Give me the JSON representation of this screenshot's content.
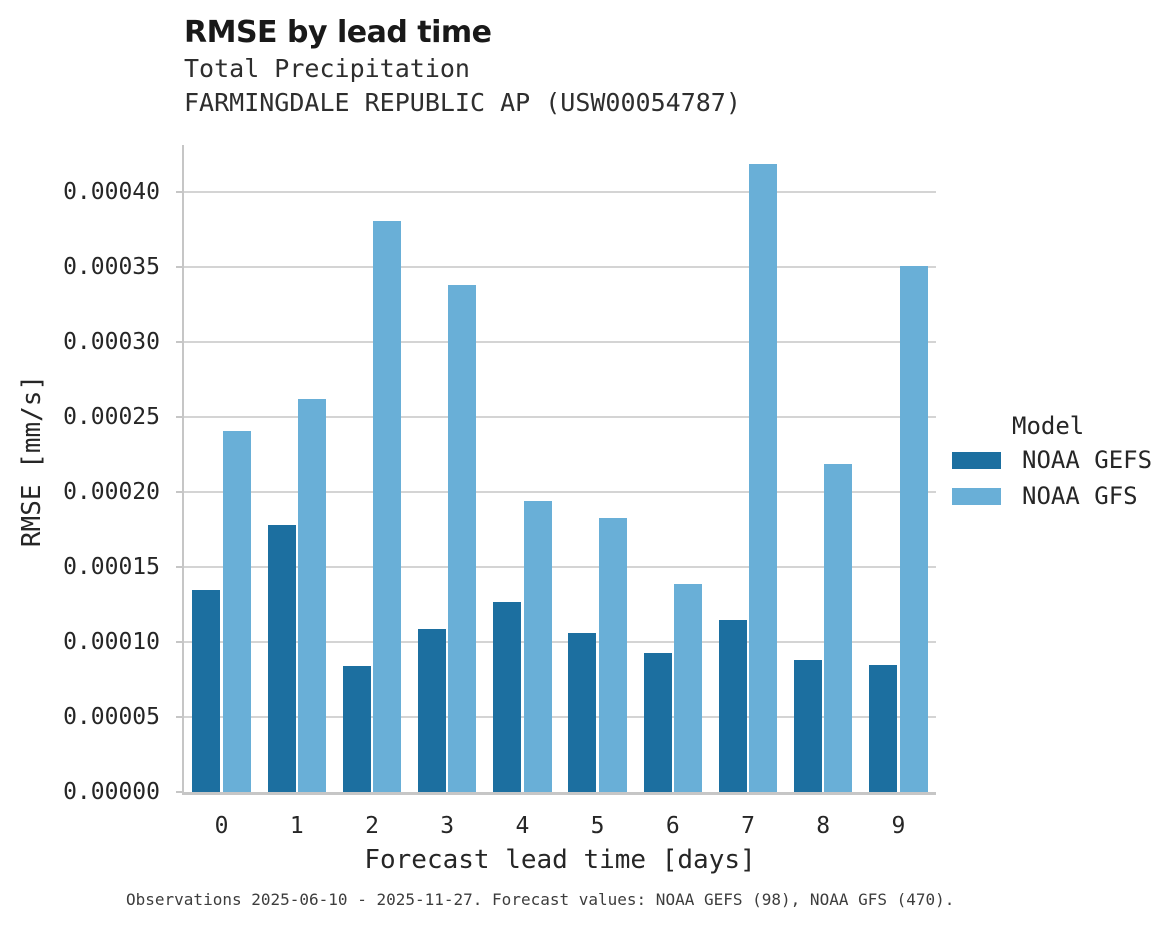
{
  "header": {
    "title": "RMSE by lead time",
    "subtitle_variable": "Total Precipitation",
    "subtitle_station": "FARMINGDALE REPUBLIC AP (USW00054787)"
  },
  "legend": {
    "title": "Model",
    "items": [
      {
        "label": "NOAA GEFS",
        "color": "#1c6fa0"
      },
      {
        "label": "NOAA GFS",
        "color": "#69afd7"
      }
    ]
  },
  "footer": {
    "caption": "Observations 2025-06-10 - 2025-11-27. Forecast values: NOAA GEFS (98), NOAA GFS (470)."
  },
  "colors": {
    "noaa_gefs": "#1c6fa0",
    "noaa_gfs": "#69afd7",
    "grid": "#d4d4d4",
    "spine": "#c6c6c6"
  },
  "chart_data": {
    "type": "bar",
    "title": "RMSE by lead time",
    "subtitle": [
      "Total Precipitation",
      "FARMINGDALE REPUBLIC AP (USW00054787)"
    ],
    "xlabel": "Forecast lead time [days]",
    "ylabel": "RMSE [mm/s]",
    "categories": [
      "0",
      "1",
      "2",
      "3",
      "4",
      "5",
      "6",
      "7",
      "8",
      "9"
    ],
    "series": [
      {
        "name": "NOAA GEFS",
        "color": "#1c6fa0",
        "values": [
          0.000135,
          0.000178,
          8.4e-05,
          0.000109,
          0.000127,
          0.000106,
          9.3e-05,
          0.000115,
          8.8e-05,
          8.5e-05
        ]
      },
      {
        "name": "NOAA GFS",
        "color": "#69afd7",
        "values": [
          0.000241,
          0.000262,
          0.000381,
          0.000338,
          0.000194,
          0.000183,
          0.000139,
          0.000419,
          0.000219,
          0.000351
        ]
      }
    ],
    "ylim": [
      0,
      0.000431
    ],
    "yticks": {
      "values": [
        0,
        5e-05,
        0.0001,
        0.00015,
        0.0002,
        0.00025,
        0.0003,
        0.00035,
        0.0004
      ],
      "labels": [
        "0.00000",
        "0.00005",
        "0.00010",
        "0.00015",
        "0.00020",
        "0.00025",
        "0.00030",
        "0.00035",
        "0.00040"
      ]
    },
    "grid": true,
    "legend_title": "Model",
    "legend_position": "right"
  }
}
